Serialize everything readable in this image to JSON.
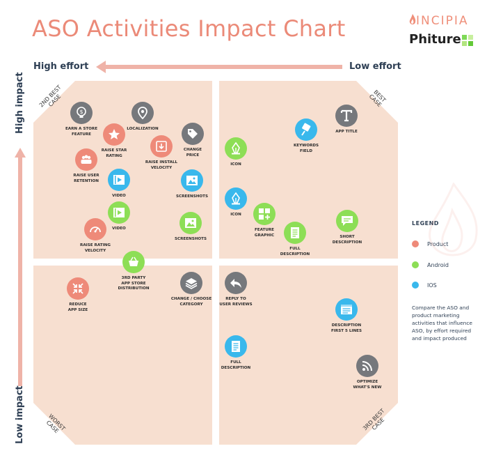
{
  "title": "ASO Activities Impact Chart",
  "brand": {
    "top": "INCIPIA",
    "bottom": "Phiture"
  },
  "axes": {
    "high_effort": "High effort",
    "low_effort": "Low effort",
    "high_impact": "High impact",
    "low_impact": "Low impact"
  },
  "corners": {
    "top_left": "2ND BEST CASE",
    "top_right": "BEST CASE",
    "bottom_left": "WORST CASE",
    "bottom_right": "3RD BEST CASE"
  },
  "colors": {
    "product": "#ee8a79",
    "android": "#8dde56",
    "ios": "#39b8ec",
    "other": "#76787c",
    "quadrant": "#f7dfd0",
    "arrow": "#efb3a8",
    "title": "#eb8a78"
  },
  "legend": {
    "title": "LEGEND",
    "items": [
      {
        "label": "Product",
        "category": "product"
      },
      {
        "label": "Android",
        "category": "android"
      },
      {
        "label": "IOS",
        "category": "ios"
      }
    ],
    "description": "Compare the ASO and product marketing activities that influence ASO, by effort required and impact produced"
  },
  "items": [
    {
      "label": "EARN A STORE\nFEATURE",
      "icon": "dollar-bulb-icon",
      "category": "other"
    },
    {
      "label": "LOCALIZATION",
      "icon": "map-pin-icon",
      "category": "other"
    },
    {
      "label": "RAISE STAR\nRATING",
      "icon": "star-icon",
      "category": "product"
    },
    {
      "label": "CHANGE\nPRICE",
      "icon": "price-tag-icon",
      "category": "other"
    },
    {
      "label": "RAISE INSTALL\nVELOCITY",
      "icon": "download-icon",
      "category": "product"
    },
    {
      "label": "RAISE USER\nRETENTION",
      "icon": "users-icon",
      "category": "product"
    },
    {
      "label": "VIDEO",
      "icon": "video-icon",
      "category": "ios"
    },
    {
      "label": "SCREENSHOTS",
      "icon": "image-icon",
      "category": "ios"
    },
    {
      "label": "VIDEO",
      "icon": "video-icon",
      "category": "android"
    },
    {
      "label": "SCREENSHOTS",
      "icon": "image-icon",
      "category": "android"
    },
    {
      "label": "RAISE RATING\nVELOCITY",
      "icon": "speedometer-icon",
      "category": "product"
    },
    {
      "label": "3RD PARTY\nAPP STORE\nDISTRIBUTION",
      "icon": "shopping-basket-icon",
      "category": "android"
    },
    {
      "label": "KEYWORDS\nFIELD",
      "icon": "keyword-pin-icon",
      "category": "ios"
    },
    {
      "label": "APP TITLE",
      "icon": "text-t-icon",
      "category": "other"
    },
    {
      "label": "ICON",
      "icon": "pen-nib-icon",
      "category": "android"
    },
    {
      "label": "ICON",
      "icon": "pen-nib-icon",
      "category": "ios"
    },
    {
      "label": "FEATURE\nGRAPHIC",
      "icon": "feature-graphic-icon",
      "category": "android"
    },
    {
      "label": "FULL\nDESCRIPTION",
      "icon": "document-icon",
      "category": "android"
    },
    {
      "label": "SHORT\nDESCRIPTION",
      "icon": "message-icon",
      "category": "android"
    },
    {
      "label": "REDUCE\nAPP SIZE",
      "icon": "compress-icon",
      "category": "product"
    },
    {
      "label": "CHANGE / CHOOSE\nCATEGORY",
      "icon": "layers-icon",
      "category": "other"
    },
    {
      "label": "REPLY TO\nUSER REVIEWS",
      "icon": "reply-icon",
      "category": "other"
    },
    {
      "label": "DESCRIPTION\nFIRST 5 LINES",
      "icon": "text-lines-icon",
      "category": "ios"
    },
    {
      "label": "FULL\nDESCRIPTION",
      "icon": "document-icon",
      "category": "ios"
    },
    {
      "label": "OPTIMIZE\nWHAT'S NEW",
      "icon": "rss-icon",
      "category": "other"
    }
  ]
}
